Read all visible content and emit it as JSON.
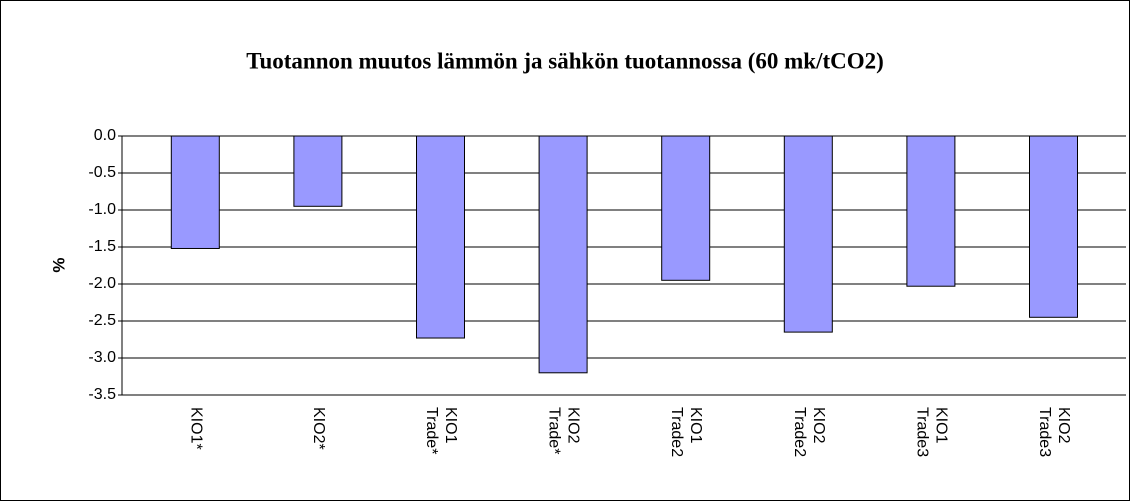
{
  "chart_data": {
    "type": "bar",
    "title": "Tuotannon muutos lämmön ja sähkön tuotannossa  (60 mk/tCO2)",
    "y_label": "%",
    "categories": [
      [
        "KIO1*"
      ],
      [
        "KIO2*"
      ],
      [
        "KIO1",
        "Trade*"
      ],
      [
        "KIO2",
        "Trade*"
      ],
      [
        "KIO1",
        "Trade2"
      ],
      [
        "KIO2",
        "Trade2"
      ],
      [
        "KIO1",
        "Trade3"
      ],
      [
        "KIO2",
        "Trade3"
      ]
    ],
    "values": [
      -1.52,
      -0.95,
      -2.73,
      -3.2,
      -1.95,
      -2.65,
      -2.03,
      -2.45
    ],
    "color": "#9999ff",
    "ylim": [
      -3.5,
      0
    ],
    "yticks": [
      {
        "value": 0,
        "label": "0.0"
      },
      -0.5,
      {
        "value": -1,
        "label": "-1.0"
      },
      -1.5,
      {
        "value": -2,
        "label": "-2.0"
      },
      -2.5,
      {
        "value": -3,
        "label": "-3.0"
      },
      -3.5
    ],
    "grid": true
  }
}
